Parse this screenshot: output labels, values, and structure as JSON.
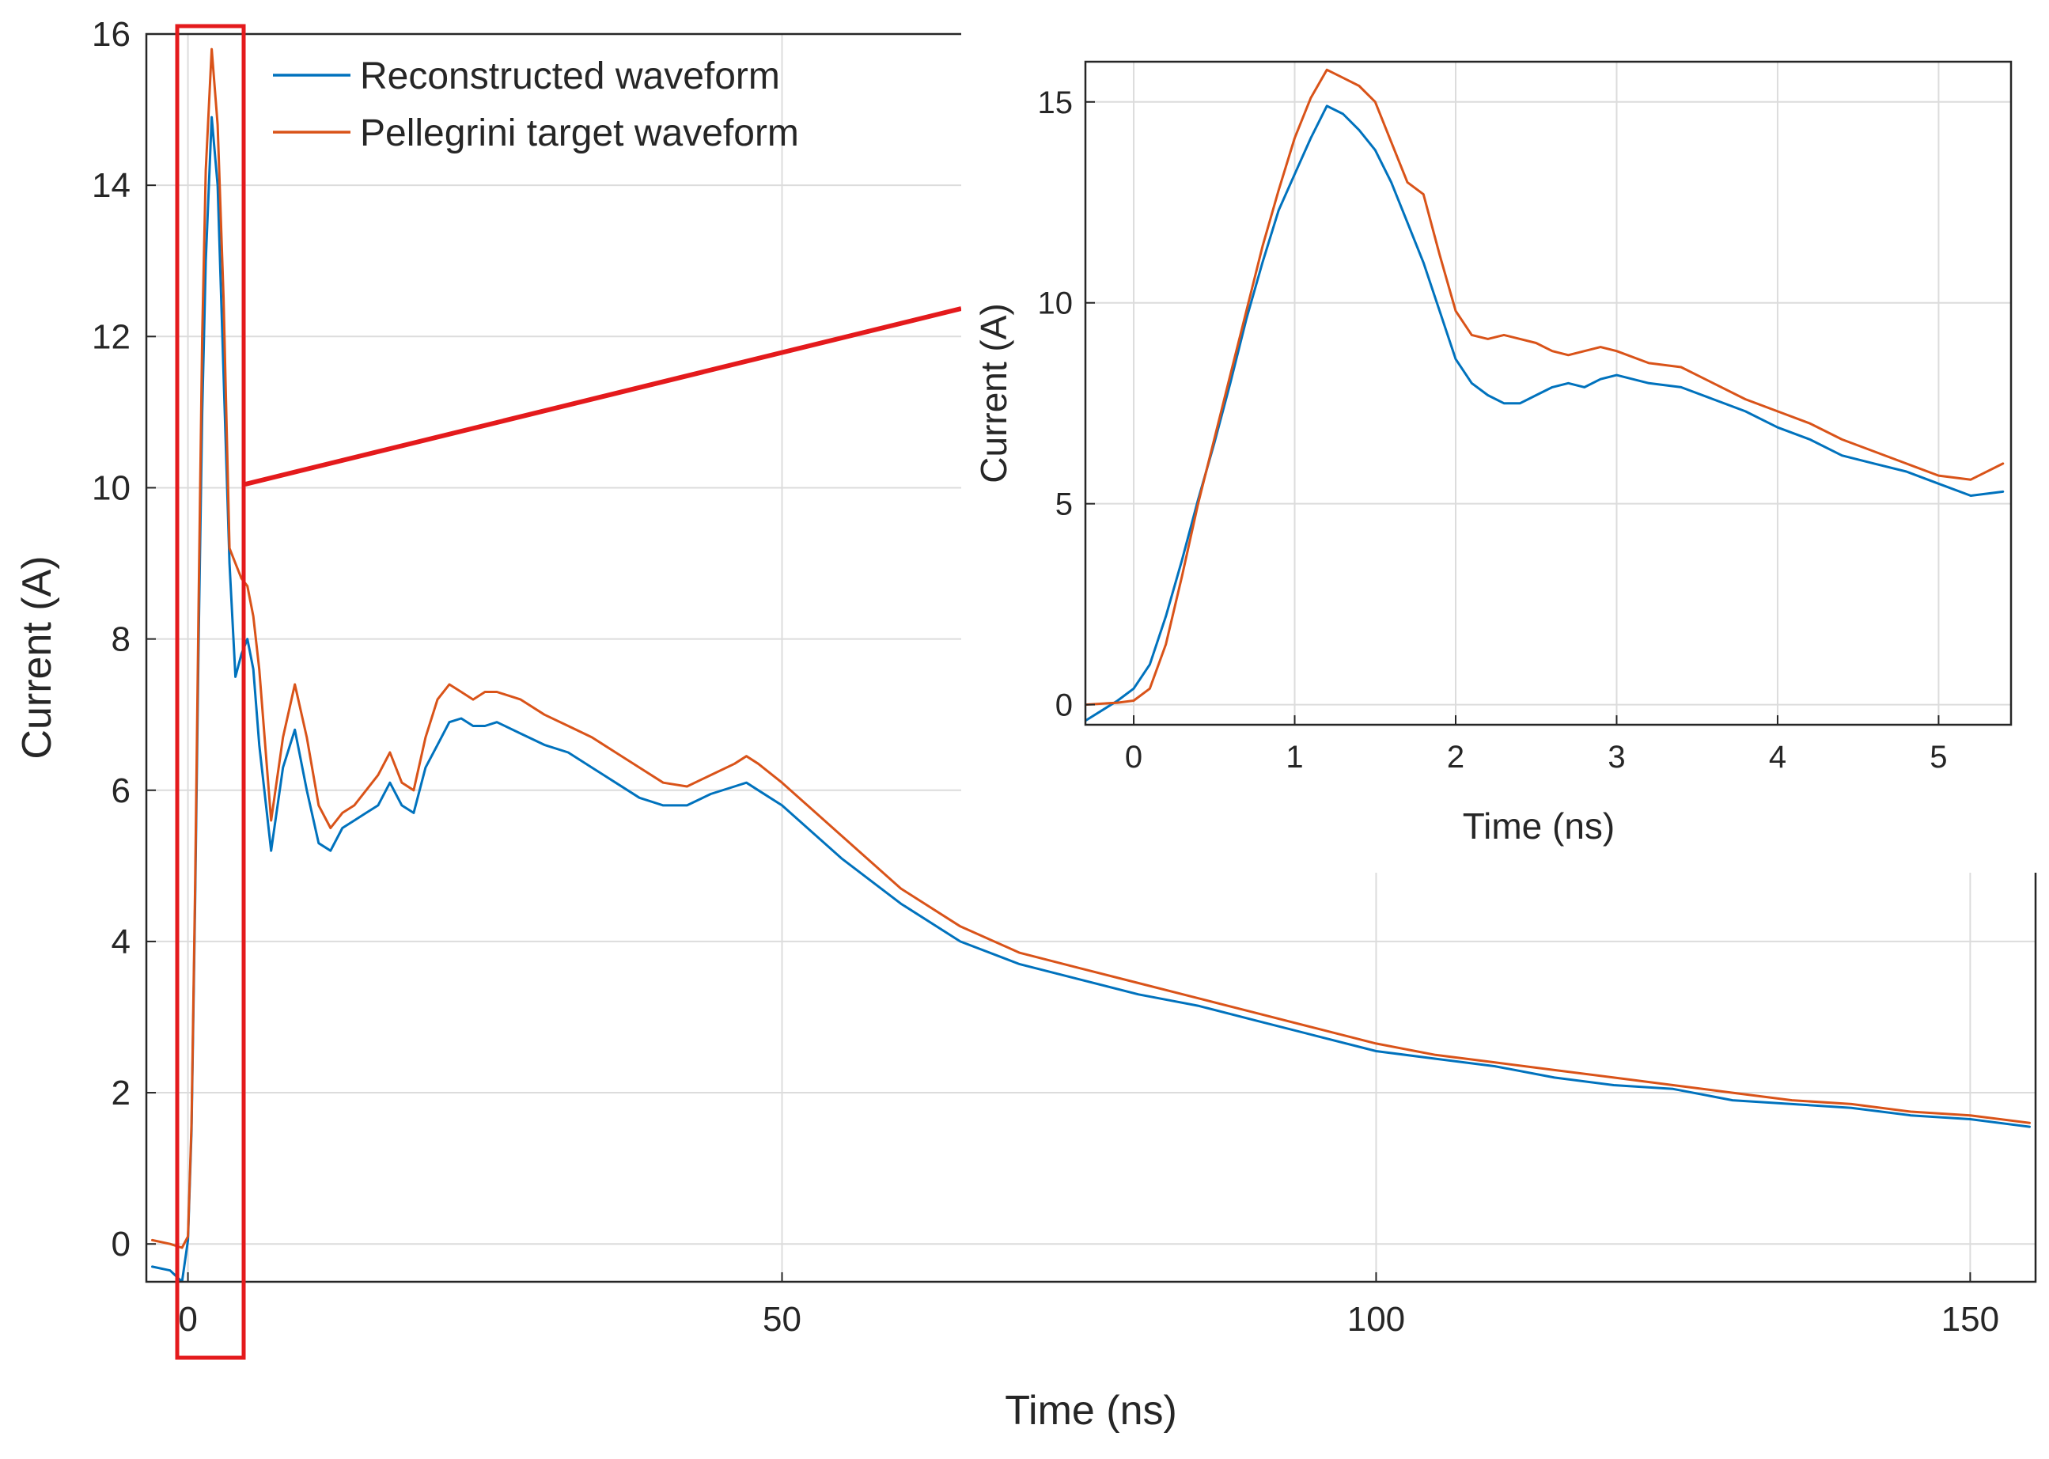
{
  "chart_data": [
    {
      "type": "line",
      "name": "main",
      "title": "",
      "xlabel": "Time (ns)",
      "ylabel": "Current (A)",
      "xlim": [
        -3.5,
        155.5
      ],
      "ylim": [
        -0.5,
        16
      ],
      "xticks": [
        0,
        50,
        100,
        150
      ],
      "yticks": [
        0,
        2,
        4,
        6,
        8,
        10,
        12,
        14,
        16
      ],
      "grid": true,
      "legend": {
        "placement": "top-left",
        "entries": [
          "Reconstructed waveform",
          "Pellegrini target waveform"
        ]
      },
      "series": [
        {
          "name": "Reconstructed waveform",
          "color": "#0072BD",
          "x": [
            -3,
            -1.5,
            -0.5,
            0,
            0.3,
            0.6,
            0.9,
            1.2,
            1.5,
            2.0,
            2.5,
            3.0,
            3.5,
            4.0,
            4.5,
            5.0,
            5.5,
            6,
            7,
            8,
            9,
            10,
            11,
            12,
            13,
            14,
            15,
            16,
            17,
            18,
            19,
            20,
            21,
            22,
            23,
            24,
            25,
            26,
            28,
            30,
            32,
            34,
            36,
            38,
            40,
            42,
            44,
            46,
            47,
            48,
            50,
            55,
            60,
            65,
            70,
            75,
            80,
            85,
            90,
            95,
            100,
            105,
            110,
            115,
            120,
            125,
            130,
            135,
            140,
            145,
            150,
            155
          ],
          "y": [
            -0.3,
            -0.35,
            -0.5,
            0.05,
            1.5,
            4.5,
            8.0,
            11.0,
            13.0,
            14.9,
            14.0,
            11.5,
            9.0,
            7.5,
            7.8,
            8.0,
            7.6,
            6.6,
            5.2,
            6.3,
            6.8,
            6.0,
            5.3,
            5.2,
            5.5,
            5.6,
            5.7,
            5.8,
            6.1,
            5.8,
            5.7,
            6.3,
            6.6,
            6.9,
            6.95,
            6.85,
            6.85,
            6.9,
            6.75,
            6.6,
            6.5,
            6.3,
            6.1,
            5.9,
            5.8,
            5.8,
            5.95,
            6.05,
            6.1,
            6.0,
            5.8,
            5.1,
            4.5,
            4.0,
            3.7,
            3.5,
            3.3,
            3.15,
            2.95,
            2.75,
            2.55,
            2.45,
            2.35,
            2.2,
            2.1,
            2.05,
            1.9,
            1.85,
            1.8,
            1.7,
            1.65,
            1.55
          ]
        },
        {
          "name": "Pellegrini target waveform",
          "color": "#D95319",
          "x": [
            -3,
            -1.5,
            -0.5,
            0,
            0.3,
            0.6,
            0.9,
            1.2,
            1.5,
            2.0,
            2.5,
            3.0,
            3.5,
            4.0,
            4.5,
            5.0,
            5.5,
            6,
            7,
            8,
            9,
            10,
            11,
            12,
            13,
            14,
            15,
            16,
            17,
            18,
            19,
            20,
            21,
            22,
            23,
            24,
            25,
            26,
            28,
            30,
            32,
            34,
            36,
            38,
            40,
            42,
            44,
            46,
            47,
            48,
            50,
            55,
            60,
            65,
            70,
            75,
            80,
            85,
            90,
            95,
            100,
            105,
            110,
            115,
            120,
            125,
            130,
            135,
            140,
            145,
            150,
            155
          ],
          "y": [
            0.05,
            0.0,
            -0.05,
            0.1,
            1.6,
            4.7,
            8.5,
            12.0,
            14.2,
            15.8,
            14.8,
            12.5,
            9.2,
            9.0,
            8.8,
            8.7,
            8.3,
            7.6,
            5.6,
            6.7,
            7.4,
            6.7,
            5.8,
            5.5,
            5.7,
            5.8,
            6.0,
            6.2,
            6.5,
            6.1,
            6.0,
            6.7,
            7.2,
            7.4,
            7.3,
            7.2,
            7.3,
            7.3,
            7.2,
            7.0,
            6.85,
            6.7,
            6.5,
            6.3,
            6.1,
            6.05,
            6.2,
            6.35,
            6.45,
            6.35,
            6.1,
            5.4,
            4.7,
            4.2,
            3.85,
            3.65,
            3.45,
            3.25,
            3.05,
            2.85,
            2.65,
            2.5,
            2.4,
            2.3,
            2.2,
            2.1,
            2.0,
            1.9,
            1.85,
            1.75,
            1.7,
            1.6
          ]
        }
      ]
    },
    {
      "type": "line",
      "name": "inset",
      "title": "",
      "xlabel": "Time (ns)",
      "ylabel": "Current (A)",
      "xlim": [
        -0.3,
        5.45
      ],
      "ylim": [
        -0.5,
        16
      ],
      "xticks": [
        0,
        1,
        2,
        3,
        4,
        5
      ],
      "yticks": [
        0,
        5,
        10,
        15
      ],
      "grid": true,
      "series": [
        {
          "name": "Reconstructed waveform",
          "color": "#0072BD",
          "x": [
            -0.3,
            -0.1,
            0,
            0.1,
            0.2,
            0.3,
            0.4,
            0.5,
            0.6,
            0.7,
            0.8,
            0.9,
            1.0,
            1.1,
            1.2,
            1.3,
            1.4,
            1.5,
            1.6,
            1.7,
            1.8,
            1.9,
            2.0,
            2.1,
            2.2,
            2.3,
            2.4,
            2.5,
            2.6,
            2.7,
            2.8,
            2.9,
            3.0,
            3.2,
            3.4,
            3.6,
            3.8,
            4.0,
            4.2,
            4.4,
            4.6,
            4.8,
            5.0,
            5.2,
            5.4
          ],
          "y": [
            -0.4,
            0.1,
            0.4,
            1.0,
            2.2,
            3.6,
            5.1,
            6.5,
            8.0,
            9.6,
            11.0,
            12.3,
            13.2,
            14.1,
            14.9,
            14.7,
            14.3,
            13.8,
            13.0,
            12.0,
            11.0,
            9.8,
            8.6,
            8.0,
            7.7,
            7.5,
            7.5,
            7.7,
            7.9,
            8.0,
            7.9,
            8.1,
            8.2,
            8.0,
            7.9,
            7.6,
            7.3,
            6.9,
            6.6,
            6.2,
            6.0,
            5.8,
            5.5,
            5.2,
            5.3
          ]
        },
        {
          "name": "Pellegrini target waveform",
          "color": "#D95319",
          "x": [
            -0.3,
            -0.1,
            0,
            0.1,
            0.2,
            0.3,
            0.4,
            0.5,
            0.6,
            0.7,
            0.8,
            0.9,
            1.0,
            1.1,
            1.2,
            1.3,
            1.4,
            1.5,
            1.6,
            1.7,
            1.8,
            1.9,
            2.0,
            2.1,
            2.2,
            2.3,
            2.4,
            2.5,
            2.6,
            2.7,
            2.8,
            2.9,
            3.0,
            3.2,
            3.4,
            3.6,
            3.8,
            4.0,
            4.2,
            4.4,
            4.6,
            4.8,
            5.0,
            5.2,
            5.4
          ],
          "y": [
            0.0,
            0.05,
            0.1,
            0.4,
            1.5,
            3.2,
            5.0,
            6.6,
            8.2,
            9.8,
            11.4,
            12.8,
            14.1,
            15.1,
            15.8,
            15.6,
            15.4,
            15.0,
            14.0,
            13.0,
            12.7,
            11.2,
            9.8,
            9.2,
            9.1,
            9.2,
            9.1,
            9.0,
            8.8,
            8.7,
            8.8,
            8.9,
            8.8,
            8.5,
            8.4,
            8.0,
            7.6,
            7.3,
            7.0,
            6.6,
            6.3,
            6.0,
            5.7,
            5.6,
            6.0
          ]
        }
      ]
    }
  ]
}
